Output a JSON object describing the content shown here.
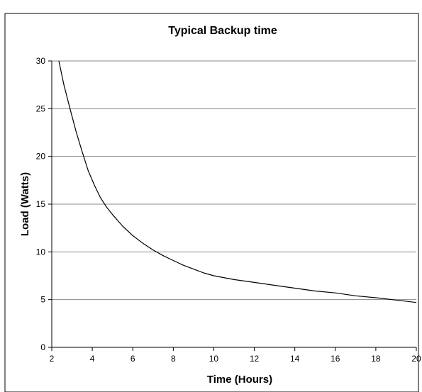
{
  "chart_data": {
    "type": "line",
    "title": "Typical Backup time",
    "xlabel": "Time (Hours)",
    "ylabel": "Load (Watts)",
    "xlim": [
      2,
      20
    ],
    "ylim": [
      0,
      30
    ],
    "x_ticks": [
      2,
      4,
      6,
      8,
      10,
      12,
      14,
      16,
      18,
      20
    ],
    "y_ticks": [
      0,
      5,
      10,
      15,
      20,
      25,
      30
    ],
    "grid": "horizontal",
    "legend": "none",
    "series": [
      {
        "color": "#000000",
        "x": [
          2.35,
          2.6,
          2.9,
          3.2,
          3.5,
          3.8,
          4.1,
          4.4,
          4.7,
          5.0,
          5.5,
          6.0,
          6.5,
          7.0,
          7.5,
          8.0,
          8.5,
          9.0,
          9.5,
          10.0,
          11.0,
          12.0,
          13.0,
          14.0,
          15.0,
          16.0,
          17.0,
          18.0,
          19.0,
          20.0
        ],
        "y": [
          30.0,
          27.5,
          25.0,
          22.6,
          20.5,
          18.5,
          17.0,
          15.7,
          14.7,
          13.9,
          12.7,
          11.7,
          10.9,
          10.2,
          9.6,
          9.1,
          8.6,
          8.2,
          7.8,
          7.5,
          7.1,
          6.8,
          6.5,
          6.2,
          5.9,
          5.7,
          5.4,
          5.2,
          4.95,
          4.7
        ]
      }
    ]
  }
}
